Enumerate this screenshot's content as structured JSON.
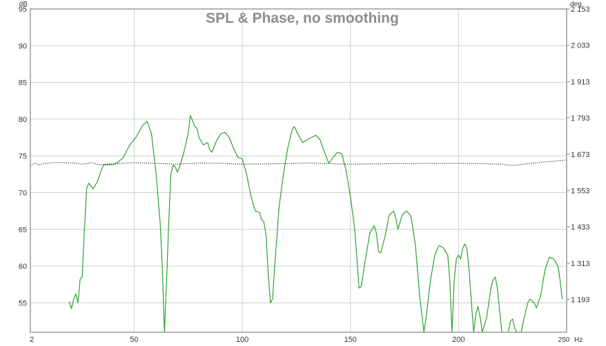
{
  "chart_data": {
    "type": "line",
    "title": "SPL & Phase, no smoothing",
    "left_unit": "dB",
    "right_unit": "deg",
    "x_unit": "Hz",
    "xlim": [
      2,
      250
    ],
    "ylim": [
      51,
      95
    ],
    "y2lim": [
      1085,
      2153
    ],
    "grid": true,
    "x_ticks": [
      2,
      50,
      100,
      150,
      200
    ],
    "x_tick_labels": [
      "2",
      "50",
      "100",
      "150",
      "200"
    ],
    "x_end_label": "250",
    "y_ticks": [
      95,
      90,
      85,
      80,
      75,
      70,
      65,
      60,
      55
    ],
    "y_tick_labels": [
      "95",
      "90",
      "85",
      "80",
      "75",
      "70",
      "65",
      "60",
      "55"
    ],
    "y2_ticks": [
      2153,
      2033,
      1913,
      1793,
      1673,
      1553,
      1433,
      1313,
      1193
    ],
    "y2_tick_labels": [
      "2 153",
      "2 033",
      "1 913",
      "1 793",
      "1 673",
      "1 553",
      "1 433",
      "1 313",
      "1 193"
    ],
    "colors": {
      "spl": "#2ca02c",
      "phase": "#333333",
      "grid": "#cccccc",
      "frame": "#999999"
    },
    "series": [
      {
        "axis": "left",
        "style": "solid",
        "points": [
          [
            20,
            55.2
          ],
          [
            21,
            54.2
          ],
          [
            22,
            55.5
          ],
          [
            23,
            56.2
          ],
          [
            24,
            55.0
          ],
          [
            25,
            58.2
          ],
          [
            26,
            58.6
          ],
          [
            27,
            65.0
          ],
          [
            28,
            70.5
          ],
          [
            29,
            71.3
          ],
          [
            31,
            70.5
          ],
          [
            33,
            71.5
          ],
          [
            35,
            73.2
          ],
          [
            36,
            73.8
          ],
          [
            40,
            73.8
          ],
          [
            42,
            74.0
          ],
          [
            45,
            74.8
          ],
          [
            48,
            76.5
          ],
          [
            51,
            77.6
          ],
          [
            54,
            79.2
          ],
          [
            56,
            79.7
          ],
          [
            58,
            78.0
          ],
          [
            60,
            73.0
          ],
          [
            62,
            66.0
          ],
          [
            63,
            60.0
          ],
          [
            64,
            51.0
          ],
          [
            65,
            58.0
          ],
          [
            66,
            66.0
          ],
          [
            67,
            72.5
          ],
          [
            68,
            73.7
          ],
          [
            69,
            73.5
          ],
          [
            70,
            72.8
          ],
          [
            71,
            73.5
          ],
          [
            73,
            75.5
          ],
          [
            75,
            78.0
          ],
          [
            76,
            80.5
          ],
          [
            77,
            79.8
          ],
          [
            78,
            79.0
          ],
          [
            79,
            78.8
          ],
          [
            80,
            77.5
          ],
          [
            82,
            76.5
          ],
          [
            84,
            76.8
          ],
          [
            85,
            75.8
          ],
          [
            86,
            75.5
          ],
          [
            88,
            77.0
          ],
          [
            90,
            78.0
          ],
          [
            92,
            78.2
          ],
          [
            94,
            77.5
          ],
          [
            96,
            76.0
          ],
          [
            98,
            74.8
          ],
          [
            100,
            74.6
          ],
          [
            102,
            72.5
          ],
          [
            104,
            69.5
          ],
          [
            106,
            67.5
          ],
          [
            108,
            67.3
          ],
          [
            109,
            66.3
          ],
          [
            110,
            66.0
          ],
          [
            111,
            64.2
          ],
          [
            112,
            59.0
          ],
          [
            113,
            55.0
          ],
          [
            114,
            55.5
          ],
          [
            115,
            60.0
          ],
          [
            117,
            68.0
          ],
          [
            119,
            72.5
          ],
          [
            121,
            76.0
          ],
          [
            123,
            78.5
          ],
          [
            124,
            79.0
          ],
          [
            126,
            77.8
          ],
          [
            128,
            76.8
          ],
          [
            130,
            77.2
          ],
          [
            132,
            77.5
          ],
          [
            134,
            77.8
          ],
          [
            136,
            77.2
          ],
          [
            138,
            75.5
          ],
          [
            140,
            74.0
          ],
          [
            142,
            74.8
          ],
          [
            144,
            75.5
          ],
          [
            146,
            75.3
          ],
          [
            148,
            73.0
          ],
          [
            150,
            69.5
          ],
          [
            152,
            65.0
          ],
          [
            153,
            61.0
          ],
          [
            154,
            57.0
          ],
          [
            155,
            57.2
          ],
          [
            157,
            61.0
          ],
          [
            159,
            64.5
          ],
          [
            161,
            65.5
          ],
          [
            162,
            64.5
          ],
          [
            163,
            62.0
          ],
          [
            164,
            61.8
          ],
          [
            166,
            64.0
          ],
          [
            168,
            67.0
          ],
          [
            170,
            67.5
          ],
          [
            171,
            66.5
          ],
          [
            172,
            65.0
          ],
          [
            174,
            67.0
          ],
          [
            176,
            67.5
          ],
          [
            178,
            66.8
          ],
          [
            180,
            63.0
          ],
          [
            182,
            56.0
          ],
          [
            183,
            53.5
          ],
          [
            184,
            51.0
          ],
          [
            185,
            53.0
          ],
          [
            187,
            58.0
          ],
          [
            189,
            61.5
          ],
          [
            191,
            62.8
          ],
          [
            193,
            62.5
          ],
          [
            195,
            61.5
          ],
          [
            196,
            58.0
          ],
          [
            197,
            51.0
          ],
          [
            198,
            58.0
          ],
          [
            199,
            61.0
          ],
          [
            200,
            61.5
          ],
          [
            201,
            61.0
          ],
          [
            202,
            62.5
          ],
          [
            203,
            63.0
          ],
          [
            204,
            62.2
          ],
          [
            205,
            59.0
          ],
          [
            206,
            55.0
          ],
          [
            207,
            51.0
          ],
          [
            208,
            53.5
          ],
          [
            209,
            54.5
          ],
          [
            210,
            53.0
          ],
          [
            211,
            51.0
          ],
          [
            213,
            53.0
          ],
          [
            215,
            57.0
          ],
          [
            216,
            58.2
          ],
          [
            217,
            58.5
          ],
          [
            218,
            57.0
          ],
          [
            219,
            54.0
          ],
          [
            220,
            51.0
          ],
          [
            222,
            51.0
          ],
          [
            223,
            51.0
          ],
          [
            224,
            52.5
          ],
          [
            225,
            52.8
          ],
          [
            226,
            51.5
          ],
          [
            227,
            51.0
          ],
          [
            229,
            51.0
          ],
          [
            230,
            52.5
          ],
          [
            232,
            55.0
          ],
          [
            233,
            55.5
          ],
          [
            235,
            55.0
          ],
          [
            236,
            54.3
          ],
          [
            238,
            56.0
          ],
          [
            240,
            59.5
          ],
          [
            242,
            61.2
          ],
          [
            244,
            61.0
          ],
          [
            246,
            60.0
          ],
          [
            247,
            58.0
          ],
          [
            248,
            55.5
          ]
        ]
      },
      {
        "axis": "right",
        "style": "dotted",
        "points": [
          [
            2,
            1635
          ],
          [
            4,
            1644
          ],
          [
            6,
            1637
          ],
          [
            8,
            1642
          ],
          [
            11,
            1644
          ],
          [
            14,
            1646
          ],
          [
            18,
            1645
          ],
          [
            22,
            1644
          ],
          [
            26,
            1640
          ],
          [
            30,
            1645
          ],
          [
            34,
            1638
          ],
          [
            40,
            1642
          ],
          [
            50,
            1645
          ],
          [
            60,
            1643
          ],
          [
            70,
            1640
          ],
          [
            80,
            1644
          ],
          [
            90,
            1643
          ],
          [
            100,
            1640
          ],
          [
            110,
            1641
          ],
          [
            120,
            1642
          ],
          [
            130,
            1644
          ],
          [
            140,
            1642
          ],
          [
            150,
            1640
          ],
          [
            160,
            1641
          ],
          [
            170,
            1642
          ],
          [
            180,
            1642
          ],
          [
            190,
            1643
          ],
          [
            200,
            1643
          ],
          [
            210,
            1642
          ],
          [
            215,
            1641
          ],
          [
            220,
            1640
          ],
          [
            225,
            1636
          ],
          [
            228,
            1638
          ],
          [
            232,
            1642
          ],
          [
            238,
            1646
          ],
          [
            244,
            1650
          ],
          [
            250,
            1654
          ]
        ]
      }
    ]
  }
}
